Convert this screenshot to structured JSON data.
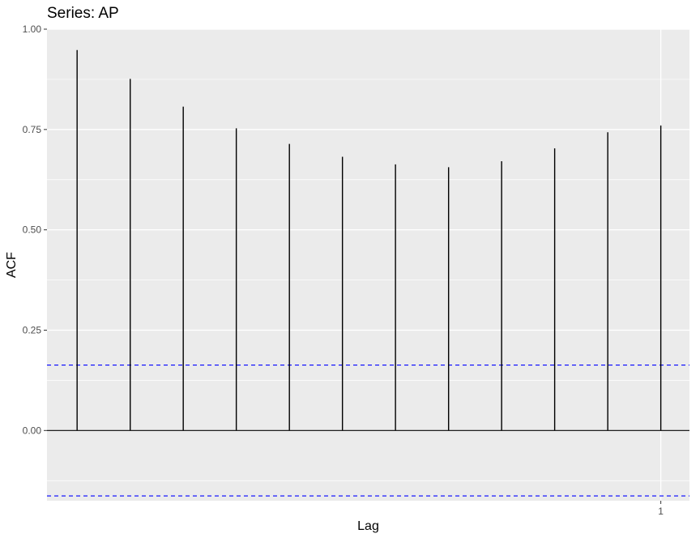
{
  "chart_data": {
    "type": "bar",
    "title": "Series: AP",
    "xlabel": "Lag",
    "ylabel": "ACF",
    "lags": [
      0.0833,
      0.1667,
      0.25,
      0.3333,
      0.4167,
      0.5,
      0.5833,
      0.6667,
      0.75,
      0.8333,
      0.9167,
      1.0
    ],
    "values": [
      0.948,
      0.876,
      0.807,
      0.753,
      0.714,
      0.682,
      0.663,
      0.656,
      0.671,
      0.703,
      0.743,
      0.76
    ],
    "xlim": [
      0.036,
      1.045
    ],
    "ylim": [
      -0.175,
      1.0
    ],
    "x_ticks": [
      1
    ],
    "x_tick_labels": [
      "1"
    ],
    "y_ticks": [
      0.0,
      0.25,
      0.5,
      0.75,
      1.0
    ],
    "y_tick_labels": [
      "0.00",
      "0.25",
      "0.50",
      "0.75",
      "1.00"
    ],
    "confidence_bound": 0.163,
    "colors": {
      "panel": "#ebebeb",
      "grid": "#ffffff",
      "stem": "#000000",
      "confidence": "#0000ff"
    }
  }
}
